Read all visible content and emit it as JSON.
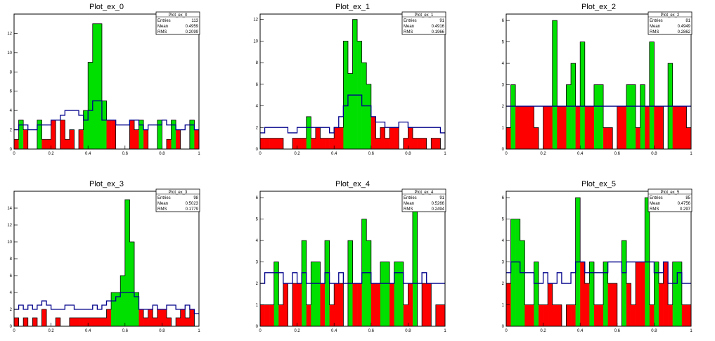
{
  "colors": {
    "above": "#00e000",
    "below": "#ff0000",
    "reference_line": "#00008b",
    "frame": "#000000",
    "background": "#ffffff"
  },
  "chart_data": [
    {
      "type": "area",
      "title": "Plot_ex_0",
      "stats": {
        "name": "Plot_ex_0",
        "rows": [
          {
            "label": "Entries",
            "value": "113"
          },
          {
            "label": "Mean",
            "value": "0.4959"
          },
          {
            "label": "RMS",
            "value": "0.2099"
          }
        ]
      },
      "xlim": [
        0,
        1
      ],
      "ylim": [
        0,
        14
      ],
      "xticks": [
        {
          "v": 0,
          "label": "0"
        },
        {
          "v": 0.2,
          "label": "0.2"
        },
        {
          "v": 0.4,
          "label": "0.4"
        },
        {
          "v": 0.6,
          "label": "0.6"
        },
        {
          "v": 0.8,
          "label": "0.8"
        },
        {
          "v": 1,
          "label": "1"
        }
      ],
      "yticks": [
        {
          "v": 0,
          "label": "0"
        },
        {
          "v": 2,
          "label": "2"
        },
        {
          "v": 4,
          "label": "4"
        },
        {
          "v": 6,
          "label": "6"
        },
        {
          "v": 8,
          "label": "8"
        },
        {
          "v": 10,
          "label": "10"
        },
        {
          "v": 12,
          "label": "12"
        }
      ],
      "series": [
        {
          "role": "histogram",
          "values": [
            1,
            3,
            2,
            0,
            0,
            3,
            1,
            1,
            3,
            0,
            3,
            1,
            2,
            0,
            2,
            4,
            9,
            13,
            13,
            5,
            3,
            3,
            0,
            0,
            0,
            3,
            2,
            3,
            2,
            0,
            0,
            3,
            0,
            1,
            3,
            2,
            0,
            0,
            3,
            2
          ]
        },
        {
          "role": "reference",
          "values": [
            2,
            2.5,
            2.5,
            2,
            2,
            2.5,
            2.5,
            2.5,
            3,
            3,
            3.5,
            4,
            4,
            4,
            3.5,
            3,
            4,
            5,
            5,
            3,
            3,
            3,
            2.5,
            2.5,
            2.5,
            3,
            3,
            2.5,
            2,
            2.5,
            2.5,
            2.5,
            3,
            2.5,
            2.5,
            2,
            2,
            2.5,
            2.5,
            2
          ]
        }
      ]
    },
    {
      "type": "area",
      "title": "Plot_ex_1",
      "stats": {
        "name": "Plot_ex_1",
        "rows": [
          {
            "label": "Entries",
            "value": "91"
          },
          {
            "label": "Mean",
            "value": "0.4916"
          },
          {
            "label": "RMS",
            "value": "0.1966"
          }
        ]
      },
      "xlim": [
        0,
        1
      ],
      "ylim": [
        0,
        12.5
      ],
      "xticks": [
        {
          "v": 0,
          "label": "0"
        },
        {
          "v": 0.2,
          "label": "0.2"
        },
        {
          "v": 0.4,
          "label": "0.4"
        },
        {
          "v": 0.6,
          "label": "0.6"
        },
        {
          "v": 0.8,
          "label": "0.8"
        },
        {
          "v": 1,
          "label": "1"
        }
      ],
      "yticks": [
        {
          "v": 0,
          "label": "0"
        },
        {
          "v": 2,
          "label": "2"
        },
        {
          "v": 4,
          "label": "4"
        },
        {
          "v": 6,
          "label": "6"
        },
        {
          "v": 8,
          "label": "8"
        },
        {
          "v": 10,
          "label": "10"
        },
        {
          "v": 12,
          "label": "12"
        }
      ],
      "series": [
        {
          "role": "histogram",
          "values": [
            1,
            1,
            1,
            1,
            1,
            0,
            0,
            1,
            1,
            1,
            3,
            1,
            2,
            1,
            1,
            1,
            2,
            2,
            10,
            7,
            12,
            10,
            8,
            6,
            3,
            1,
            2,
            1,
            2,
            2,
            0,
            1,
            2,
            1,
            1,
            1,
            0,
            1,
            1,
            0
          ]
        },
        {
          "role": "reference",
          "values": [
            1.5,
            2,
            2,
            2,
            2,
            2,
            1.5,
            1.5,
            2,
            2,
            2,
            2,
            2,
            2,
            2,
            1.5,
            2,
            3,
            4,
            5,
            5,
            5,
            4,
            4,
            3,
            2.5,
            2.5,
            2,
            2,
            2,
            2.5,
            2.5,
            2,
            2,
            2,
            2,
            2,
            2,
            2,
            1.5
          ]
        }
      ]
    },
    {
      "type": "area",
      "title": "Plot_ex_2",
      "stats": {
        "name": "Plot_ex_2",
        "rows": [
          {
            "label": "Entries",
            "value": "81"
          },
          {
            "label": "Mean",
            "value": "0.4949"
          },
          {
            "label": "RMS",
            "value": "0.2862"
          }
        ]
      },
      "xlim": [
        0,
        1
      ],
      "ylim": [
        0,
        6.3
      ],
      "xticks": [
        {
          "v": 0,
          "label": "0"
        },
        {
          "v": 0.2,
          "label": "0.2"
        },
        {
          "v": 0.4,
          "label": "0.4"
        },
        {
          "v": 0.6,
          "label": "0.6"
        },
        {
          "v": 0.8,
          "label": "0.8"
        },
        {
          "v": 1,
          "label": "1"
        }
      ],
      "yticks": [
        {
          "v": 0,
          "label": "0"
        },
        {
          "v": 1,
          "label": "1"
        },
        {
          "v": 2,
          "label": "2"
        },
        {
          "v": 3,
          "label": "3"
        },
        {
          "v": 4,
          "label": "4"
        },
        {
          "v": 5,
          "label": "5"
        },
        {
          "v": 6,
          "label": "6"
        }
      ],
      "series": [
        {
          "role": "histogram",
          "values": [
            1,
            3,
            2,
            2,
            2,
            2,
            1,
            0,
            2,
            2,
            6,
            2,
            2,
            3,
            4,
            2,
            5,
            2,
            2,
            3,
            3,
            1,
            1,
            0,
            2,
            2,
            3,
            3,
            1,
            3,
            2,
            5,
            2,
            2,
            0,
            4,
            2,
            2,
            2,
            1
          ]
        },
        {
          "role": "reference",
          "values": [
            2,
            2,
            2,
            2,
            2,
            2,
            2,
            2,
            2,
            2,
            2,
            2,
            2,
            2,
            2,
            2,
            2,
            2,
            2,
            2,
            2,
            2,
            2,
            2,
            2,
            2,
            2,
            2,
            2,
            2,
            2,
            2,
            2,
            2,
            2,
            2,
            2,
            2,
            2,
            2
          ]
        }
      ]
    },
    {
      "type": "area",
      "title": "Plot_ex_3",
      "stats": {
        "name": "Plot_ex_3",
        "rows": [
          {
            "label": "Entries",
            "value": "98"
          },
          {
            "label": "Mean",
            "value": "0.5023"
          },
          {
            "label": "RMS",
            "value": "0.1779"
          }
        ]
      },
      "xlim": [
        0,
        1
      ],
      "ylim": [
        0,
        16
      ],
      "xticks": [
        {
          "v": 0,
          "label": "0"
        },
        {
          "v": 0.2,
          "label": "0.2"
        },
        {
          "v": 0.4,
          "label": "0.4"
        },
        {
          "v": 0.6,
          "label": "0.6"
        },
        {
          "v": 0.8,
          "label": "0.8"
        },
        {
          "v": 1,
          "label": "1"
        }
      ],
      "yticks": [
        {
          "v": 0,
          "label": "0"
        },
        {
          "v": 2,
          "label": "2"
        },
        {
          "v": 4,
          "label": "4"
        },
        {
          "v": 6,
          "label": "6"
        },
        {
          "v": 8,
          "label": "8"
        },
        {
          "v": 10,
          "label": "10"
        },
        {
          "v": 12,
          "label": "12"
        },
        {
          "v": 14,
          "label": "14"
        }
      ],
      "series": [
        {
          "role": "histogram",
          "values": [
            1,
            0,
            1,
            0,
            1,
            0,
            2,
            0,
            0,
            1,
            0,
            0,
            1,
            1,
            1,
            1,
            1,
            1,
            1,
            1,
            2,
            4,
            4,
            6,
            15,
            10,
            4,
            2,
            1,
            2,
            1,
            2,
            2,
            1,
            0,
            1,
            2,
            1,
            2,
            0
          ]
        },
        {
          "role": "reference",
          "values": [
            2,
            2.5,
            2,
            2.5,
            2,
            2.5,
            3,
            2.5,
            2,
            2,
            2,
            2.5,
            2.5,
            2,
            2,
            2,
            2,
            2.5,
            2,
            2.5,
            3,
            3,
            3.5,
            4,
            4,
            4,
            3.5,
            2,
            2,
            2,
            2.5,
            2,
            2,
            2.5,
            2.5,
            2,
            2,
            2.5,
            2,
            1.5
          ]
        }
      ]
    },
    {
      "type": "area",
      "title": "Plot_ex_4",
      "stats": {
        "name": "Plot_ex_4",
        "rows": [
          {
            "label": "Entries",
            "value": "91"
          },
          {
            "label": "Mean",
            "value": "0.5266"
          },
          {
            "label": "RMS",
            "value": "0.2494"
          }
        ]
      },
      "xlim": [
        0,
        1
      ],
      "ylim": [
        0,
        6.3
      ],
      "xticks": [
        {
          "v": 0,
          "label": "0"
        },
        {
          "v": 0.2,
          "label": "0.2"
        },
        {
          "v": 0.4,
          "label": "0.4"
        },
        {
          "v": 0.6,
          "label": "0.6"
        },
        {
          "v": 0.8,
          "label": "0.8"
        },
        {
          "v": 1,
          "label": "1"
        }
      ],
      "yticks": [
        {
          "v": 0,
          "label": "0"
        },
        {
          "v": 1,
          "label": "1"
        },
        {
          "v": 2,
          "label": "2"
        },
        {
          "v": 3,
          "label": "3"
        },
        {
          "v": 4,
          "label": "4"
        },
        {
          "v": 5,
          "label": "5"
        },
        {
          "v": 6,
          "label": "6"
        }
      ],
      "series": [
        {
          "role": "histogram",
          "values": [
            1,
            1,
            1,
            3,
            1,
            2,
            0,
            2,
            2,
            4,
            1,
            3,
            3,
            2,
            4,
            1,
            2,
            2,
            0,
            4,
            2,
            2,
            5,
            4,
            2,
            2,
            3,
            3,
            2,
            3,
            3,
            1,
            2,
            6,
            0,
            2,
            2,
            0,
            1,
            1
          ]
        },
        {
          "role": "reference",
          "values": [
            2,
            2.5,
            2.5,
            2.5,
            2.5,
            2,
            2,
            2.5,
            2,
            2.5,
            2,
            2,
            2,
            2,
            2.5,
            2,
            2,
            2.5,
            2,
            2,
            2,
            2,
            2.5,
            2.5,
            2,
            2,
            2,
            2,
            2,
            2.5,
            2.5,
            2,
            2,
            2,
            2,
            2.5,
            2,
            2,
            2,
            2
          ]
        }
      ]
    },
    {
      "type": "area",
      "title": "Plot_ex_5",
      "stats": {
        "name": "Plot_ex_5",
        "rows": [
          {
            "label": "Entries",
            "value": "85"
          },
          {
            "label": "Mean",
            "value": "0.4756"
          },
          {
            "label": "RMS",
            "value": "0.297"
          }
        ]
      },
      "xlim": [
        0,
        1
      ],
      "ylim": [
        0,
        6.3
      ],
      "xticks": [
        {
          "v": 0,
          "label": "0"
        },
        {
          "v": 0.2,
          "label": "0.2"
        },
        {
          "v": 0.4,
          "label": "0.4"
        },
        {
          "v": 0.6,
          "label": "0.6"
        },
        {
          "v": 0.8,
          "label": "0.8"
        },
        {
          "v": 1,
          "label": "1"
        }
      ],
      "yticks": [
        {
          "v": 0,
          "label": "0"
        },
        {
          "v": 1,
          "label": "1"
        },
        {
          "v": 2,
          "label": "2"
        },
        {
          "v": 3,
          "label": "3"
        },
        {
          "v": 4,
          "label": "4"
        },
        {
          "v": 5,
          "label": "5"
        },
        {
          "v": 6,
          "label": "6"
        }
      ],
      "series": [
        {
          "role": "histogram",
          "values": [
            2,
            5,
            5,
            4,
            1,
            1,
            3,
            1,
            1,
            2,
            1,
            1,
            0,
            1,
            1,
            6,
            3,
            2,
            3,
            1,
            1,
            3,
            2,
            2,
            0,
            4,
            2,
            1,
            3,
            3,
            6,
            1,
            3,
            2,
            3,
            1,
            3,
            3,
            1,
            1
          ]
        },
        {
          "role": "reference",
          "values": [
            2.5,
            3,
            3,
            2.5,
            2.5,
            2.5,
            2,
            2,
            2.5,
            2,
            2,
            2.5,
            2,
            2,
            2.5,
            3,
            3,
            2.5,
            2.5,
            2.5,
            2.5,
            2.5,
            3,
            3,
            3,
            2.5,
            3,
            3,
            3,
            3,
            3,
            3,
            2.5,
            2.5,
            3,
            2,
            2,
            2.5,
            2,
            2
          ]
        }
      ]
    }
  ]
}
